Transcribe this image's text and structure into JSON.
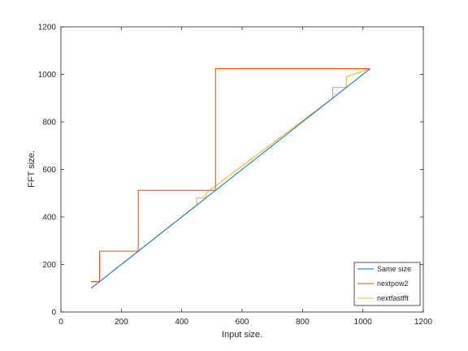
{
  "chart_data": {
    "type": "line",
    "title": "",
    "xlabel": "Input size.",
    "ylabel": "FFT size.",
    "xlim": [
      0,
      1200
    ],
    "ylim": [
      0,
      1200
    ],
    "xticks": [
      0,
      200,
      400,
      600,
      800,
      1000,
      1200
    ],
    "yticks": [
      0,
      200,
      400,
      600,
      800,
      1000,
      1200
    ],
    "grid": false,
    "legend_position": "bottom-right",
    "series": [
      {
        "name": "Same size",
        "color": "#0072bd",
        "x": [
          100,
          1024
        ],
        "y": [
          100,
          1024
        ]
      },
      {
        "name": "nextpow2",
        "color": "#d95319",
        "x": [
          100,
          128,
          128,
          256,
          256,
          512,
          512,
          1024
        ],
        "y": [
          128,
          128,
          256,
          256,
          512,
          512,
          1024,
          1024
        ]
      },
      {
        "name": "nextfastfft",
        "color": "#edb120",
        "x": [
          100,
          450,
          450,
          480,
          480,
          900,
          900,
          945,
          945,
          1024
        ],
        "y": [
          100,
          450,
          480,
          480,
          500,
          900,
          945,
          945,
          990,
          1024
        ]
      }
    ]
  }
}
